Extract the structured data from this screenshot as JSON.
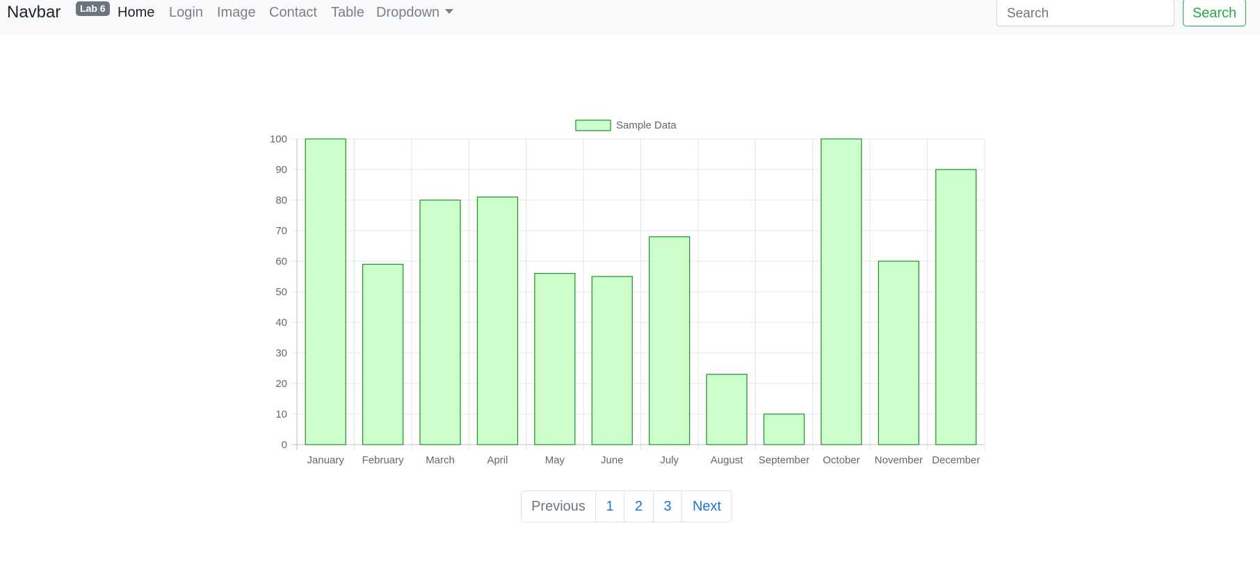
{
  "navbar": {
    "brand": "Navbar",
    "badge": "Lab 6",
    "items": [
      {
        "label": "Home",
        "active": true
      },
      {
        "label": "Login"
      },
      {
        "label": "Image"
      },
      {
        "label": "Contact"
      },
      {
        "label": "Table"
      },
      {
        "label": "Dropdown"
      }
    ],
    "search": {
      "placeholder": "Search",
      "value": "",
      "button_label": "Search"
    }
  },
  "chart_data": {
    "type": "bar",
    "title": "",
    "xlabel": "",
    "ylabel": "",
    "categories": [
      "January",
      "February",
      "March",
      "April",
      "May",
      "June",
      "July",
      "August",
      "September",
      "October",
      "November",
      "December"
    ],
    "series": [
      {
        "name": "Sample Data",
        "values": [
          100,
          59,
          80,
          81,
          56,
          55,
          68,
          23,
          10,
          100,
          60,
          90
        ],
        "fill_color": "#ccffcc",
        "border_color": "#1e8c1e"
      }
    ],
    "ylim": [
      0,
      100
    ],
    "yticks": [
      "0",
      "10",
      "20",
      "30",
      "40",
      "50",
      "60",
      "70",
      "80",
      "90",
      "100"
    ],
    "grid": true,
    "legend": "top-center"
  },
  "pagination": {
    "previous": "Previous",
    "pages": [
      "1",
      "2",
      "3"
    ],
    "next": "Next"
  }
}
